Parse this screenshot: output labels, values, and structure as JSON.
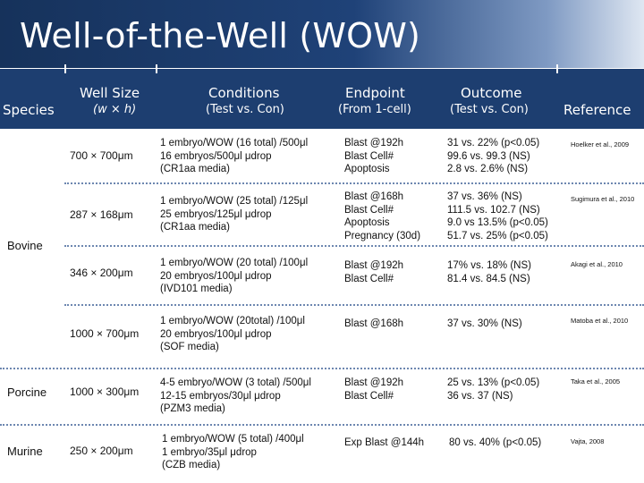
{
  "title": "Well-of-the-Well (WOW)",
  "headers": {
    "species": "Species",
    "well_size": "Well Size",
    "well_size_sub": "(w × h)",
    "conditions": "Conditions",
    "conditions_sub": "(Test vs. Con)",
    "endpoint": "Endpoint",
    "endpoint_sub": "(From 1-cell)",
    "outcome": "Outcome",
    "outcome_sub": "(Test vs. Con)",
    "reference": "Reference"
  },
  "species_labels": {
    "bovine": "Bovine",
    "porcine": "Porcine",
    "murine": "Murine"
  },
  "rows": [
    {
      "well": "700  ×  700μm",
      "conditions": [
        "1 embryo/WOW (16 total) /500μl",
        "16 embryos/500μl μdrop",
        "(CR1aa media)"
      ],
      "endpoint": [
        "Blast @192h",
        "Blast Cell#",
        "Apoptosis"
      ],
      "outcome": [
        "31 vs. 22% (p<0.05)",
        "99.6 vs. 99.3 (NS)",
        "2.8 vs. 2.6% (NS)"
      ],
      "reference": "Hoelker et al., 2009"
    },
    {
      "well": "287  ×  168μm",
      "conditions": [
        "1 embryo/WOW (25 total) /125μl",
        "25 embryos/125μl μdrop",
        "(CR1aa media)"
      ],
      "endpoint": [
        "Blast @168h",
        "Blast Cell#",
        "Apoptosis",
        "Pregnancy (30d)"
      ],
      "outcome": [
        "37 vs. 36% (NS)",
        "111.5 vs. 102.7 (NS)",
        "9.0 vs 13.5% (p<0.05)",
        "51.7 vs. 25% (p<0.05)"
      ],
      "reference": "Sugimura et al., 2010"
    },
    {
      "well": "346  ×  200μm",
      "conditions": [
        "1 embryo/WOW (20 total) /100μl",
        "20 embryos/100μl μdrop",
        "(IVD101 media)"
      ],
      "endpoint": [
        "Blast @192h",
        "Blast Cell#"
      ],
      "outcome": [
        "17%  vs. 18% (NS)",
        "81.4 vs. 84.5  (NS)"
      ],
      "reference": "Akagi et al., 2010"
    },
    {
      "well": "1000 × 700μm",
      "conditions": [
        "1 embryo/WOW (20total) /100μl",
        "20 embryos/100μl μdrop",
        "(SOF media)"
      ],
      "endpoint": [
        "Blast @168h"
      ],
      "outcome": [
        "37 vs. 30% (NS)"
      ],
      "reference": "Matoba et al., 2010"
    },
    {
      "well": "1000 × 300μm",
      "conditions": [
        "4-5 embryo/WOW (3 total) /500μl",
        "12-15 embryos/30μl μdrop",
        "(PZM3 media)"
      ],
      "endpoint": [
        "Blast @192h",
        "Blast Cell#"
      ],
      "outcome": [
        "25 vs. 13% (p<0.05)",
        "36 vs. 37 (NS)"
      ],
      "reference": "Taka et al., 2005"
    },
    {
      "well": "250  ×  200μm",
      "conditions": [
        "1 embryo/WOW (5 total) /400μl",
        "1 embryo/35μl μdrop",
        "(CZB media)"
      ],
      "endpoint": [
        "Exp Blast @144h"
      ],
      "outcome": [
        " 80 vs. 40% (p<0.05)"
      ],
      "reference": "Vajta, 2008"
    }
  ],
  "colors": {
    "header_band": "#1d3e70",
    "title_dark": "#16325b",
    "separator": "#6d87b0"
  }
}
